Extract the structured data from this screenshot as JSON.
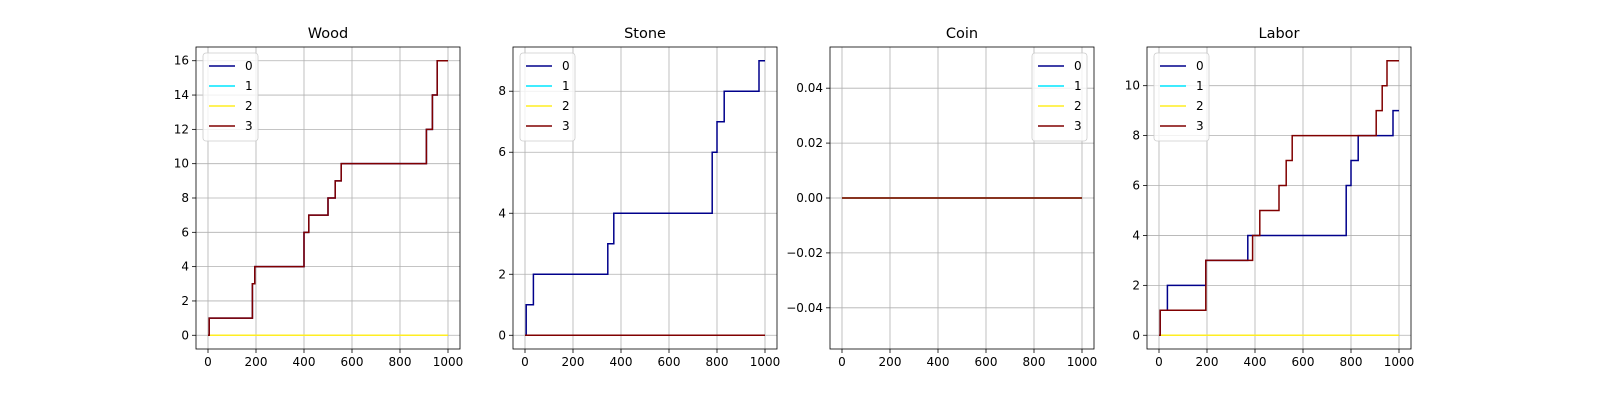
{
  "chart_data": [
    {
      "type": "line",
      "title": "Wood",
      "xlim": [
        -50,
        1050
      ],
      "ylim": [
        -0.8,
        16.8
      ],
      "xticks": [
        0,
        200,
        400,
        600,
        800,
        1000
      ],
      "yticks": [
        0,
        2,
        4,
        6,
        8,
        10,
        12,
        14,
        16
      ],
      "ytick_labels": [
        "0",
        "2",
        "4",
        "6",
        "8",
        "10",
        "12",
        "14",
        "16"
      ],
      "grid": true,
      "legend_loc": "upper left",
      "step": true,
      "series": [
        {
          "name": "0",
          "color": "#00008b",
          "x": [
            0,
            5,
            185,
            195,
            400,
            420,
            500,
            530,
            555,
            910,
            935,
            955,
            1000
          ],
          "y": [
            0,
            1,
            3,
            4,
            6,
            7,
            8,
            9,
            10,
            12,
            14,
            16,
            16
          ]
        },
        {
          "name": "1",
          "color": "#00e5ff",
          "x": [
            0,
            1000
          ],
          "y": [
            0,
            0
          ]
        },
        {
          "name": "2",
          "color": "#ffee22",
          "x": [
            0,
            1000
          ],
          "y": [
            0,
            0
          ]
        },
        {
          "name": "3",
          "color": "#800000",
          "x": [
            0,
            5,
            185,
            195,
            400,
            420,
            500,
            530,
            555,
            910,
            935,
            955,
            1000
          ],
          "y": [
            0,
            1,
            3,
            4,
            6,
            7,
            8,
            9,
            10,
            12,
            14,
            16,
            16
          ]
        }
      ]
    },
    {
      "type": "line",
      "title": "Stone",
      "xlim": [
        -50,
        1050
      ],
      "ylim": [
        -0.45,
        9.45
      ],
      "xticks": [
        0,
        200,
        400,
        600,
        800,
        1000
      ],
      "yticks": [
        0,
        2,
        4,
        6,
        8
      ],
      "ytick_labels": [
        "0",
        "2",
        "4",
        "6",
        "8"
      ],
      "grid": true,
      "legend_loc": "upper left",
      "step": true,
      "series": [
        {
          "name": "0",
          "color": "#00008b",
          "x": [
            0,
            5,
            35,
            345,
            370,
            780,
            800,
            830,
            975,
            1000
          ],
          "y": [
            0,
            1,
            2,
            3,
            4,
            6,
            7,
            8,
            9,
            9
          ]
        },
        {
          "name": "1",
          "color": "#00e5ff",
          "x": [
            0,
            1000
          ],
          "y": [
            0,
            0
          ]
        },
        {
          "name": "2",
          "color": "#ffee22",
          "x": [
            0,
            1000
          ],
          "y": [
            0,
            0
          ]
        },
        {
          "name": "3",
          "color": "#800000",
          "x": [
            0,
            1000
          ],
          "y": [
            0,
            0
          ]
        }
      ]
    },
    {
      "type": "line",
      "title": "Coin",
      "xlim": [
        -50,
        1050
      ],
      "ylim": [
        -0.055,
        0.055
      ],
      "xticks": [
        0,
        200,
        400,
        600,
        800,
        1000
      ],
      "yticks": [
        -0.04,
        -0.02,
        0.0,
        0.02,
        0.04
      ],
      "ytick_labels": [
        "−0.04",
        "−0.02",
        "0.00",
        "0.02",
        "0.04"
      ],
      "grid": true,
      "legend_loc": "upper right",
      "step": true,
      "series": [
        {
          "name": "0",
          "color": "#00008b",
          "x": [
            0,
            1000
          ],
          "y": [
            0,
            0
          ]
        },
        {
          "name": "1",
          "color": "#00e5ff",
          "x": [
            0,
            1000
          ],
          "y": [
            0,
            0
          ]
        },
        {
          "name": "2",
          "color": "#ffee22",
          "x": [
            0,
            1000
          ],
          "y": [
            0,
            0
          ]
        },
        {
          "name": "3",
          "color": "#800000",
          "x": [
            0,
            1000
          ],
          "y": [
            0,
            0
          ]
        }
      ]
    },
    {
      "type": "line",
      "title": "Labor",
      "xlim": [
        -50,
        1050
      ],
      "ylim": [
        -0.55,
        11.55
      ],
      "xticks": [
        0,
        200,
        400,
        600,
        800,
        1000
      ],
      "yticks": [
        0,
        2,
        4,
        6,
        8,
        10
      ],
      "ytick_labels": [
        "0",
        "2",
        "4",
        "6",
        "8",
        "10"
      ],
      "grid": true,
      "legend_loc": "upper left",
      "step": true,
      "series": [
        {
          "name": "0",
          "color": "#00008b",
          "x": [
            0,
            5,
            35,
            195,
            345,
            370,
            780,
            800,
            830,
            975,
            1000
          ],
          "y": [
            0,
            1,
            2,
            3,
            3,
            4,
            6,
            7,
            8,
            9,
            9
          ]
        },
        {
          "name": "1",
          "color": "#00e5ff",
          "x": [
            0,
            1000
          ],
          "y": [
            0,
            0
          ]
        },
        {
          "name": "2",
          "color": "#ffee22",
          "x": [
            0,
            1000
          ],
          "y": [
            0,
            0
          ]
        },
        {
          "name": "3",
          "color": "#800000",
          "x": [
            0,
            5,
            195,
            355,
            390,
            420,
            500,
            530,
            555,
            905,
            930,
            950,
            1000
          ],
          "y": [
            0,
            1,
            3,
            3,
            4,
            5,
            6,
            7,
            8,
            9,
            10,
            11,
            11
          ]
        }
      ]
    }
  ]
}
